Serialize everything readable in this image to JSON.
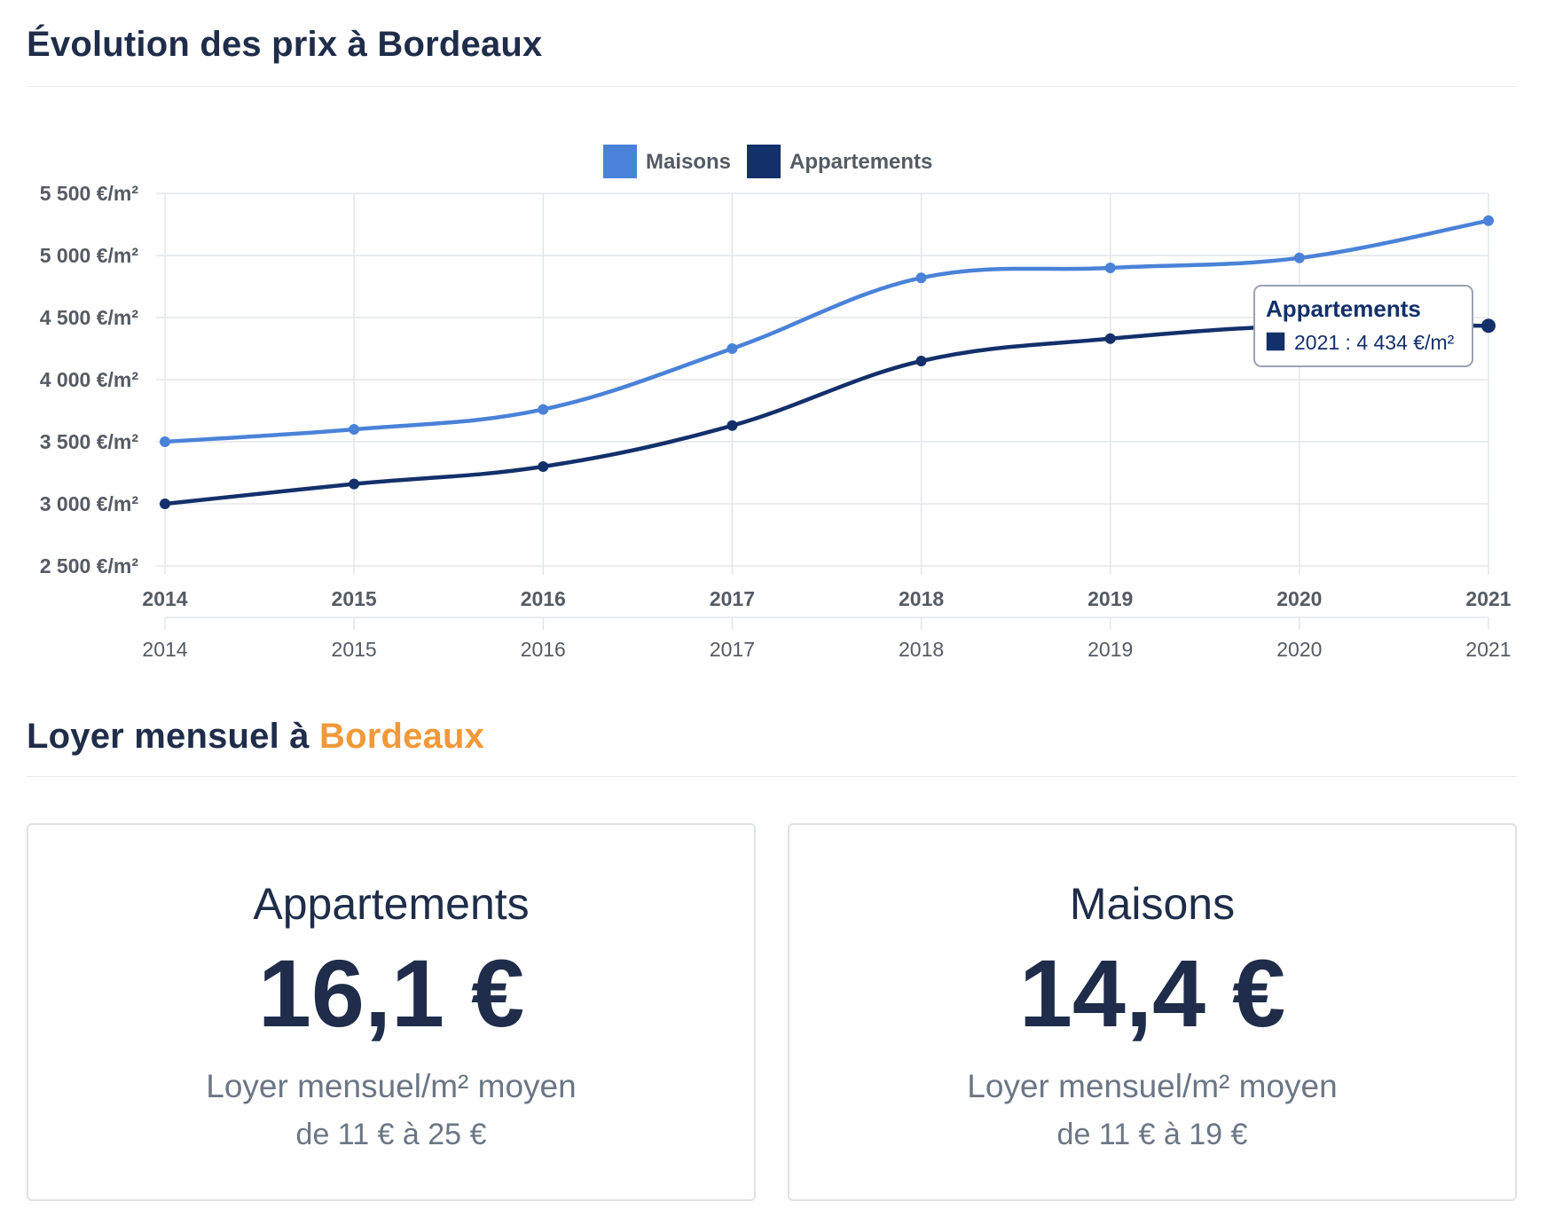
{
  "price_section": {
    "title": "Évolution des prix à Bordeaux"
  },
  "rent_section": {
    "title_prefix": "Loyer mensuel à ",
    "title_city": "Bordeaux"
  },
  "chart_data": {
    "type": "line",
    "x": [
      "2014",
      "2015",
      "2016",
      "2017",
      "2018",
      "2019",
      "2020",
      "2021"
    ],
    "series": [
      {
        "name": "Maisons",
        "color": "#4a82d8",
        "values": [
          3500,
          3600,
          3760,
          4250,
          4820,
          4900,
          4980,
          5280
        ]
      },
      {
        "name": "Appartements",
        "color": "#13306b",
        "values": [
          3000,
          3160,
          3300,
          3630,
          4150,
          4330,
          4434,
          4434
        ]
      }
    ],
    "y_ticks": [
      "5 500 €/m²",
      "5 000 €/m²",
      "4 500 €/m²",
      "4 000 €/m²",
      "3 500 €/m²",
      "3 000 €/m²",
      "2 500 €/m²"
    ],
    "ylim": [
      2500,
      5500
    ],
    "grid": true,
    "legend": "top-center",
    "tooltip": {
      "series": "Appartements",
      "text": "2021 : 4 434 €/m²"
    }
  },
  "cards": {
    "appartements": {
      "title": "Appartements",
      "value": "16,1 €",
      "caption": "Loyer mensuel/m² moyen",
      "range": "de 11 € à 25 €"
    },
    "maisons": {
      "title": "Maisons",
      "value": "14,4 €",
      "caption": "Loyer mensuel/m² moyen",
      "range": "de 11 € à 19 €"
    }
  }
}
